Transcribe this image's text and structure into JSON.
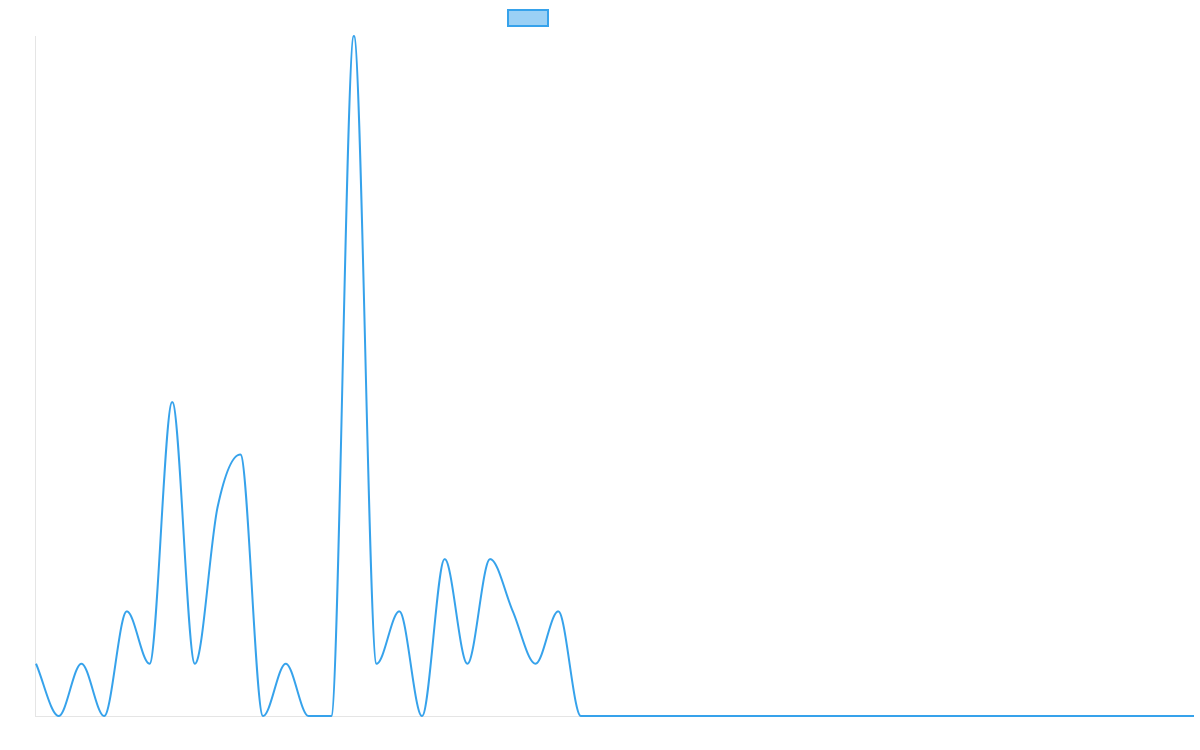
{
  "chart_data": {
    "type": "line",
    "title": "",
    "xlabel": "",
    "ylabel": "",
    "legend": {
      "position": "top",
      "entries": [
        {
          "label": ""
        }
      ]
    },
    "grid": false,
    "x_axis_labels": false,
    "y_axis_labels": false,
    "x": [
      0,
      1,
      2,
      3,
      4,
      5,
      6,
      7,
      8,
      9,
      10,
      11,
      12,
      13,
      14,
      15,
      16,
      17,
      18,
      19,
      20,
      21,
      22,
      23,
      24,
      25,
      26,
      27,
      28,
      29,
      30,
      31,
      32,
      33,
      34,
      35,
      36,
      37,
      38,
      39,
      40,
      41,
      42,
      43,
      44,
      45,
      46,
      47,
      48,
      49,
      50,
      51
    ],
    "ylim": [
      0,
      13
    ],
    "series": [
      {
        "name": "",
        "color": "#36a2eb",
        "fill": "rgba(54,162,235,0.5)",
        "values": [
          1,
          0,
          1,
          0,
          2,
          1,
          6,
          1,
          4,
          5,
          0,
          1,
          0,
          0,
          13,
          1,
          2,
          0,
          3,
          1,
          3,
          2,
          1,
          2,
          0,
          0,
          0,
          0,
          0,
          0,
          0,
          0,
          0,
          0,
          0,
          0,
          0,
          0,
          0,
          0,
          0,
          0,
          0,
          0,
          0,
          0,
          0,
          0,
          0,
          0,
          0,
          0
        ]
      }
    ]
  }
}
